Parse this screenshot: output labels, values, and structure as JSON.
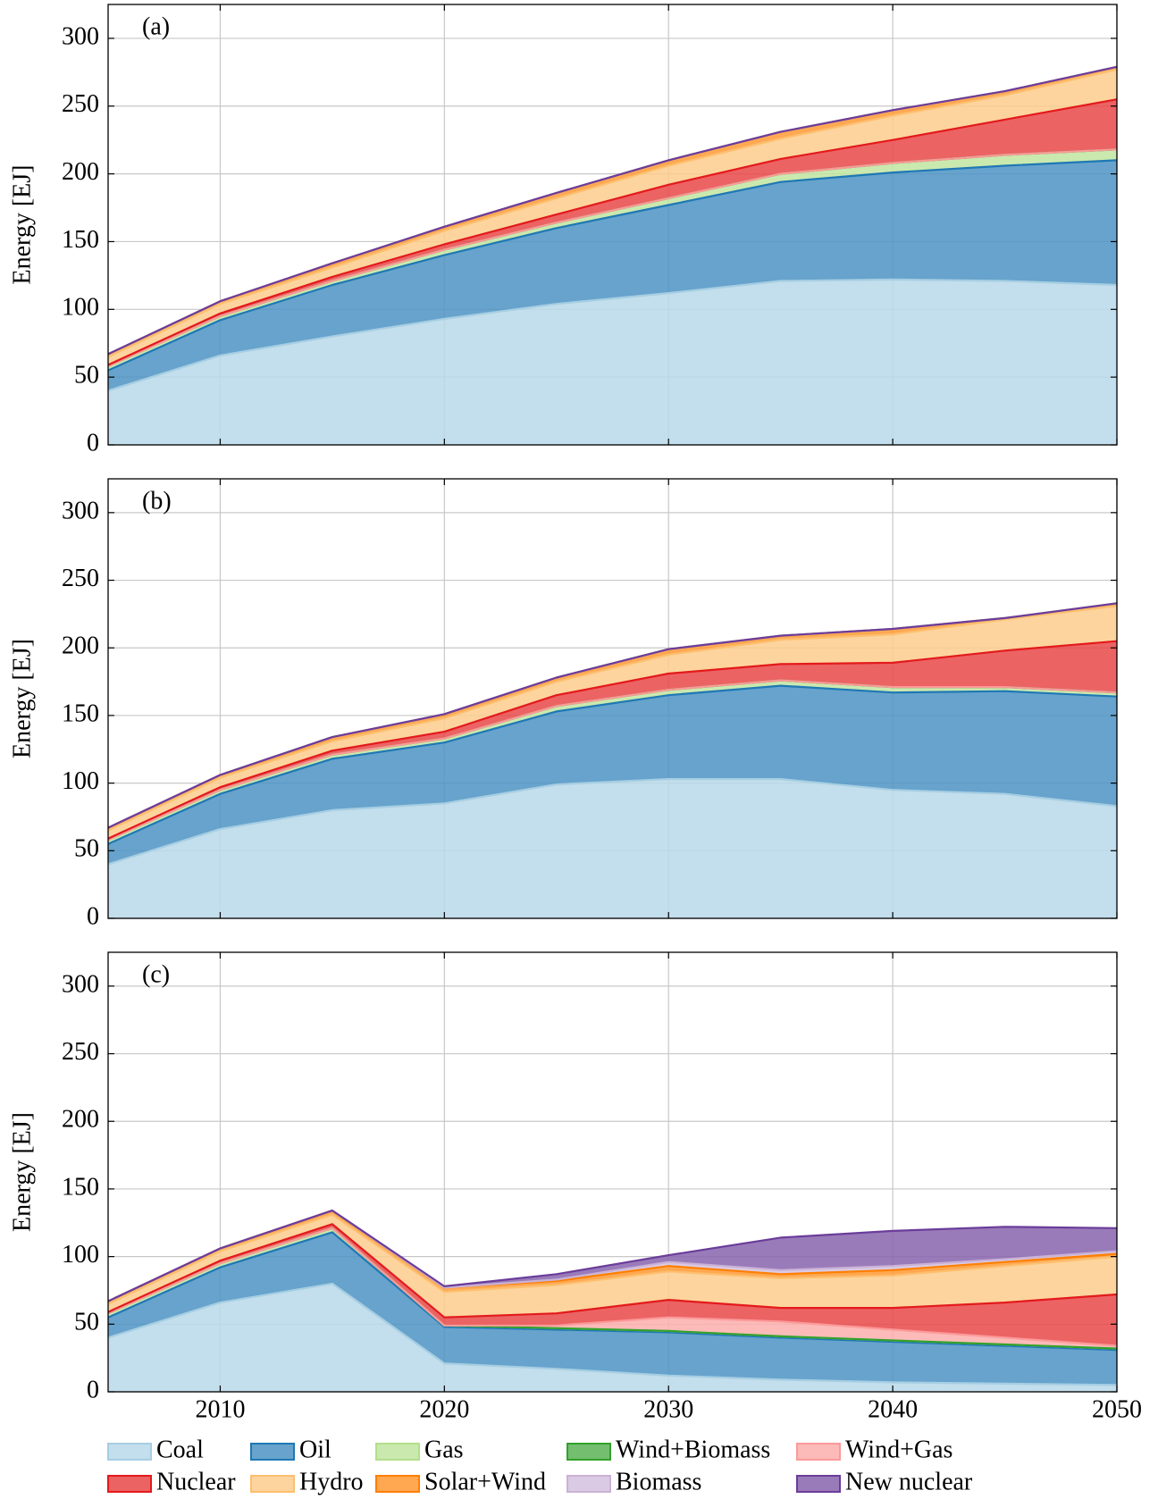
{
  "chart_data": [
    {
      "type": "area",
      "title": "(a)",
      "ylabel": "Energy [EJ]",
      "x": [
        2005,
        2010,
        2015,
        2020,
        2025,
        2030,
        2035,
        2040,
        2045,
        2050
      ],
      "xlim": [
        2005,
        2050
      ],
      "xticks": [
        2010,
        2020,
        2030,
        2040,
        2050
      ],
      "ylim": [
        0,
        325
      ],
      "yticks": [
        0,
        50,
        100,
        150,
        200,
        250,
        300
      ],
      "grid": true,
      "series": [
        {
          "color": "#a6cee3",
          "values": [
            40,
            66,
            80,
            93,
            104,
            112,
            121,
            122,
            121,
            118
          ]
        },
        {
          "color": "#1f78b4",
          "values": [
            15,
            26,
            38,
            47,
            56,
            65,
            73,
            79,
            85,
            92
          ]
        },
        {
          "color": "#b2df8a",
          "values": [
            3,
            3,
            3,
            4,
            4,
            5,
            6,
            7,
            8,
            8
          ]
        },
        {
          "color": "#33a02c",
          "values": [
            0,
            0,
            0,
            0,
            0,
            0,
            0,
            0,
            0,
            0
          ]
        },
        {
          "color": "#fb9a99",
          "values": [
            0,
            0,
            0,
            0,
            0,
            0,
            0,
            0,
            0,
            0
          ]
        },
        {
          "color": "#e31a1c",
          "values": [
            1,
            2,
            3,
            4,
            6,
            10,
            11,
            17,
            26,
            37
          ]
        },
        {
          "color": "#fdbf6f",
          "values": [
            6,
            7,
            7,
            10,
            12,
            14,
            15,
            18,
            18,
            22
          ]
        },
        {
          "color": "#ff7f00",
          "values": [
            2,
            2,
            3,
            3,
            4,
            4,
            5,
            4,
            3,
            2
          ]
        },
        {
          "color": "#cab2d6",
          "values": [
            0,
            0,
            0,
            0,
            0,
            0,
            0,
            0,
            0,
            0
          ]
        },
        {
          "color": "#6a3d9a",
          "values": [
            0,
            0,
            0,
            0,
            0,
            0,
            0,
            0,
            0,
            0
          ]
        }
      ]
    },
    {
      "type": "area",
      "title": "(b)",
      "ylabel": "Energy [EJ]",
      "x": [
        2005,
        2010,
        2015,
        2020,
        2025,
        2030,
        2035,
        2040,
        2045,
        2050
      ],
      "xlim": [
        2005,
        2050
      ],
      "xticks": [
        2010,
        2020,
        2030,
        2040,
        2050
      ],
      "ylim": [
        0,
        325
      ],
      "yticks": [
        0,
        50,
        100,
        150,
        200,
        250,
        300
      ],
      "grid": true,
      "series": [
        {
          "color": "#a6cee3",
          "values": [
            40,
            66,
            80,
            85,
            99,
            103,
            103,
            95,
            92,
            83
          ]
        },
        {
          "color": "#1f78b4",
          "values": [
            15,
            26,
            38,
            45,
            54,
            62,
            69,
            72,
            76,
            81
          ]
        },
        {
          "color": "#b2df8a",
          "values": [
            3,
            3,
            3,
            3,
            4,
            4,
            4,
            4,
            3,
            3
          ]
        },
        {
          "color": "#33a02c",
          "values": [
            0,
            0,
            0,
            0,
            0,
            0,
            0,
            0,
            0,
            0
          ]
        },
        {
          "color": "#fb9a99",
          "values": [
            0,
            0,
            0,
            0,
            0,
            0,
            0,
            0,
            0,
            0
          ]
        },
        {
          "color": "#e31a1c",
          "values": [
            1,
            2,
            3,
            5,
            8,
            12,
            12,
            18,
            27,
            38
          ]
        },
        {
          "color": "#fdbf6f",
          "values": [
            6,
            7,
            7,
            10,
            10,
            14,
            18,
            21,
            23,
            26
          ]
        },
        {
          "color": "#ff7f00",
          "values": [
            2,
            2,
            3,
            3,
            3,
            4,
            3,
            4,
            1,
            2
          ]
        },
        {
          "color": "#cab2d6",
          "values": [
            0,
            0,
            0,
            0,
            0,
            0,
            0,
            0,
            0,
            0
          ]
        },
        {
          "color": "#6a3d9a",
          "values": [
            0,
            0,
            0,
            0,
            0,
            0,
            0,
            0,
            0,
            0
          ]
        }
      ]
    },
    {
      "type": "area",
      "title": "(c)",
      "ylabel": "Energy [EJ]",
      "x": [
        2005,
        2010,
        2015,
        2020,
        2025,
        2030,
        2035,
        2040,
        2045,
        2050
      ],
      "xlim": [
        2005,
        2050
      ],
      "xticks": [
        2010,
        2020,
        2030,
        2040,
        2050
      ],
      "ylim": [
        0,
        325
      ],
      "yticks": [
        0,
        50,
        100,
        150,
        200,
        250,
        300
      ],
      "grid": true,
      "legend": "bottom",
      "series": [
        {
          "name": "Coal",
          "color": "#a6cee3",
          "values": [
            40,
            66,
            80,
            21,
            17,
            12,
            9,
            7,
            6,
            5
          ]
        },
        {
          "name": "Oil",
          "color": "#1f78b4",
          "values": [
            15,
            26,
            38,
            27,
            29,
            32,
            31,
            30,
            28,
            26
          ]
        },
        {
          "name": "Gas",
          "color": "#b2df8a",
          "values": [
            3,
            3,
            3,
            1,
            1,
            1,
            1,
            1,
            1,
            1
          ]
        },
        {
          "name": "Wind+Biomass",
          "color": "#33a02c",
          "values": [
            0,
            0,
            0,
            0,
            0,
            0,
            0,
            0,
            0,
            0
          ]
        },
        {
          "name": "Wind+Gas",
          "color": "#fb9a99",
          "values": [
            0,
            0,
            0,
            0,
            2,
            10,
            11,
            8,
            5,
            2
          ]
        },
        {
          "name": "Nuclear",
          "color": "#e31a1c",
          "values": [
            1,
            2,
            3,
            6,
            9,
            13,
            10,
            16,
            26,
            38
          ]
        },
        {
          "name": "Hydro",
          "color": "#fdbf6f",
          "values": [
            6,
            7,
            7,
            19,
            21,
            21,
            22,
            24,
            27,
            28
          ]
        },
        {
          "name": "Solar+Wind",
          "color": "#ff7f00",
          "values": [
            2,
            2,
            3,
            3,
            3,
            4,
            3,
            4,
            3,
            2
          ]
        },
        {
          "name": "Biomass",
          "color": "#cab2d6",
          "values": [
            0,
            0,
            0,
            0,
            1,
            3,
            3,
            3,
            2,
            2
          ]
        },
        {
          "name": "New nuclear",
          "color": "#6a3d9a",
          "values": [
            0,
            0,
            0,
            1,
            4,
            5,
            24,
            26,
            24,
            17
          ]
        }
      ]
    }
  ]
}
